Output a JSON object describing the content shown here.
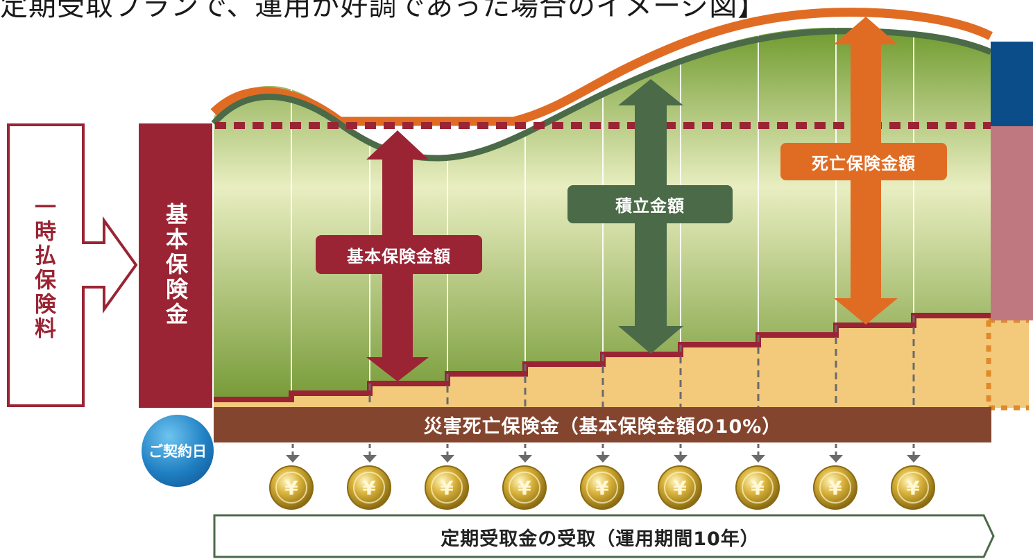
{
  "title": "定期受取プランで、運用が好調であった場合のイメージ図】",
  "labels": {
    "single_premium": "一時払保険料",
    "basic_insurance": "基本保険金",
    "basic_insurance_amount": "基本保険金額",
    "reserve_amount": "積立金額",
    "death_benefit_amount": "死亡保険金額",
    "accidental_death_benefit": "災害死亡保険金（基本保険金額の10%）",
    "contract_date": "ご契約日",
    "periodic_receipt": "定期受取金の受取（運用期間10年）"
  },
  "icons": {
    "coin": "yen-coin-icon",
    "down_arrow": "dashed-down-arrow-icon"
  },
  "colors": {
    "maroon": "#9a2434",
    "dark_green": "#4a6a48",
    "orange": "#e06c24",
    "brown": "#84452f",
    "blue": "#1f6fb0",
    "navy": "#0b4d88",
    "pink": "#c07880",
    "cream": "#f3c97c"
  },
  "coin_count": 9
}
